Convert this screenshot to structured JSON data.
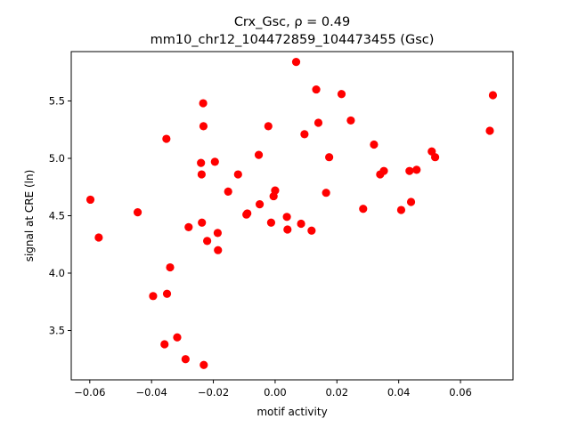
{
  "chart_data": {
    "type": "scatter",
    "title_line1": "Crx_Gsc, ρ = 0.49",
    "title_line2": "mm10_chr12_104472859_104473455 (Gsc)",
    "xlabel": "motif activity",
    "ylabel": "signal at CRE (ln)",
    "xlim": [
      -0.066,
      0.077
    ],
    "ylim": [
      3.07,
      5.93
    ],
    "xticks": [
      -0.06,
      -0.04,
      -0.02,
      0.0,
      0.02,
      0.04,
      0.06
    ],
    "xtick_labels": [
      "−0.06",
      "−0.04",
      "−0.02",
      "0.00",
      "0.02",
      "0.04",
      "0.06"
    ],
    "yticks": [
      3.5,
      4.0,
      4.5,
      5.0,
      5.5
    ],
    "ytick_labels": [
      "3.5",
      "4.0",
      "4.5",
      "5.0",
      "5.5"
    ],
    "marker_color": "#ff0000",
    "grid": false,
    "points": [
      {
        "x": -0.0598,
        "y": 4.64
      },
      {
        "x": -0.0571,
        "y": 4.31
      },
      {
        "x": -0.0445,
        "y": 4.53
      },
      {
        "x": -0.0395,
        "y": 3.8
      },
      {
        "x": -0.0358,
        "y": 3.38
      },
      {
        "x": -0.0352,
        "y": 5.17
      },
      {
        "x": -0.035,
        "y": 3.82
      },
      {
        "x": -0.034,
        "y": 4.05
      },
      {
        "x": -0.0317,
        "y": 3.44
      },
      {
        "x": -0.029,
        "y": 3.25
      },
      {
        "x": -0.028,
        "y": 4.4
      },
      {
        "x": -0.024,
        "y": 4.96
      },
      {
        "x": -0.0238,
        "y": 4.86
      },
      {
        "x": -0.0237,
        "y": 4.44
      },
      {
        "x": -0.0233,
        "y": 5.48
      },
      {
        "x": -0.0232,
        "y": 5.28
      },
      {
        "x": -0.0231,
        "y": 3.2
      },
      {
        "x": -0.022,
        "y": 4.28
      },
      {
        "x": -0.0195,
        "y": 4.97
      },
      {
        "x": -0.0186,
        "y": 4.35
      },
      {
        "x": -0.0185,
        "y": 4.2
      },
      {
        "x": -0.0152,
        "y": 4.71
      },
      {
        "x": -0.012,
        "y": 4.86
      },
      {
        "x": -0.0093,
        "y": 4.51
      },
      {
        "x": -0.009,
        "y": 4.52
      },
      {
        "x": -0.0053,
        "y": 5.03
      },
      {
        "x": -0.005,
        "y": 4.6
      },
      {
        "x": -0.0022,
        "y": 5.28
      },
      {
        "x": -0.0013,
        "y": 4.44
      },
      {
        "x": -0.0005,
        "y": 4.67
      },
      {
        "x": 0.0,
        "y": 4.72
      },
      {
        "x": 0.0038,
        "y": 4.49
      },
      {
        "x": 0.004,
        "y": 4.38
      },
      {
        "x": 0.0068,
        "y": 5.84
      },
      {
        "x": 0.0084,
        "y": 4.43
      },
      {
        "x": 0.0095,
        "y": 5.21
      },
      {
        "x": 0.0118,
        "y": 4.37
      },
      {
        "x": 0.0133,
        "y": 5.6
      },
      {
        "x": 0.014,
        "y": 5.31
      },
      {
        "x": 0.0165,
        "y": 4.7
      },
      {
        "x": 0.0175,
        "y": 5.01
      },
      {
        "x": 0.0215,
        "y": 5.56
      },
      {
        "x": 0.0245,
        "y": 5.33
      },
      {
        "x": 0.0285,
        "y": 4.56
      },
      {
        "x": 0.032,
        "y": 5.12
      },
      {
        "x": 0.034,
        "y": 4.86
      },
      {
        "x": 0.0352,
        "y": 4.89
      },
      {
        "x": 0.0408,
        "y": 4.55
      },
      {
        "x": 0.0435,
        "y": 4.89
      },
      {
        "x": 0.044,
        "y": 4.62
      },
      {
        "x": 0.0458,
        "y": 4.9
      },
      {
        "x": 0.0507,
        "y": 5.06
      },
      {
        "x": 0.0518,
        "y": 5.01
      },
      {
        "x": 0.0695,
        "y": 5.24
      },
      {
        "x": 0.0705,
        "y": 5.55
      }
    ]
  }
}
